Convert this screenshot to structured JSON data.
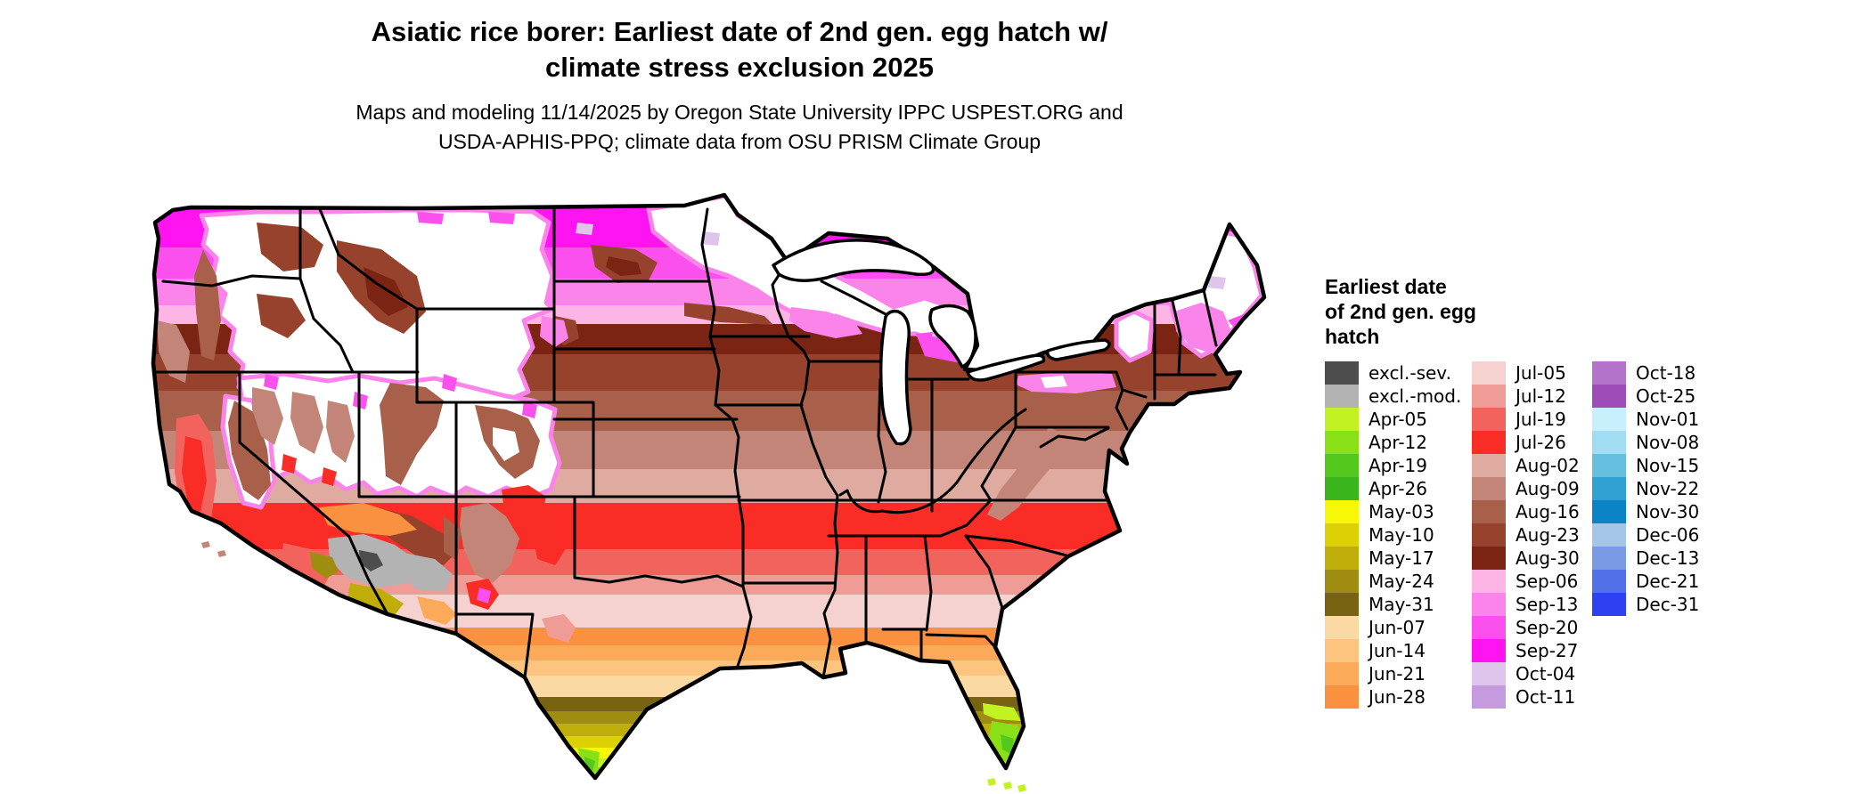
{
  "title": {
    "line1": "Asiatic rice borer: Earliest date of 2nd gen. egg hatch w/",
    "line2": "climate stress exclusion 2025"
  },
  "subtitle": {
    "line1": "Maps and modeling 11/14/2025 by Oregon State University IPPC USPEST.ORG and",
    "line2": "USDA-APHIS-PPQ; climate data from OSU PRISM Climate Group"
  },
  "legend": {
    "title_lines": [
      "Earliest date",
      "of 2nd gen. egg",
      "hatch"
    ],
    "columns": [
      [
        {
          "label": "excl.-sev.",
          "color": "#4d4d4d"
        },
        {
          "label": "excl.-mod.",
          "color": "#b3b3b3"
        },
        {
          "label": "Apr-05",
          "color": "#c3f223"
        },
        {
          "label": "Apr-12",
          "color": "#8ae016"
        },
        {
          "label": "Apr-19",
          "color": "#55c81e"
        },
        {
          "label": "Apr-26",
          "color": "#3ab51c"
        },
        {
          "label": "May-03",
          "color": "#f8f806"
        },
        {
          "label": "May-10",
          "color": "#ddd106"
        },
        {
          "label": "May-17",
          "color": "#bfae0a"
        },
        {
          "label": "May-24",
          "color": "#9f8d12"
        },
        {
          "label": "May-31",
          "color": "#786312"
        },
        {
          "label": "Jun-07",
          "color": "#fbd9a2"
        },
        {
          "label": "Jun-14",
          "color": "#fcc47e"
        },
        {
          "label": "Jun-21",
          "color": "#fbaa5a"
        },
        {
          "label": "Jun-28",
          "color": "#f99140"
        }
      ],
      [
        {
          "label": "Jul-05",
          "color": "#f5d2cf"
        },
        {
          "label": "Jul-12",
          "color": "#f09c96"
        },
        {
          "label": "Jul-19",
          "color": "#f2635d"
        },
        {
          "label": "Jul-26",
          "color": "#f92c26"
        },
        {
          "label": "Aug-02",
          "color": "#dfaaa0"
        },
        {
          "label": "Aug-09",
          "color": "#c28578"
        },
        {
          "label": "Aug-16",
          "color": "#a8604b"
        },
        {
          "label": "Aug-23",
          "color": "#97422d"
        },
        {
          "label": "Aug-30",
          "color": "#7c2414"
        },
        {
          "label": "Sep-06",
          "color": "#fcb5e5"
        },
        {
          "label": "Sep-13",
          "color": "#fb84ea"
        },
        {
          "label": "Sep-20",
          "color": "#fb4fee"
        },
        {
          "label": "Sep-27",
          "color": "#fd14f0"
        },
        {
          "label": "Oct-04",
          "color": "#dfc5ec"
        },
        {
          "label": "Oct-11",
          "color": "#c69ade"
        }
      ],
      [
        {
          "label": "Oct-18",
          "color": "#b473cb"
        },
        {
          "label": "Oct-25",
          "color": "#9d4cb8"
        },
        {
          "label": "Nov-01",
          "color": "#c9effc"
        },
        {
          "label": "Nov-08",
          "color": "#a0dcf2"
        },
        {
          "label": "Nov-15",
          "color": "#67bfe0"
        },
        {
          "label": "Nov-22",
          "color": "#30a1d3"
        },
        {
          "label": "Nov-30",
          "color": "#0a84c6"
        },
        {
          "label": "Dec-06",
          "color": "#a6c5ea"
        },
        {
          "label": "Dec-13",
          "color": "#7b9ae6"
        },
        {
          "label": "Dec-21",
          "color": "#5271e9"
        },
        {
          "label": "Dec-31",
          "color": "#2f3ff2"
        }
      ]
    ]
  },
  "map": {
    "area": "Continental United States",
    "no_data_color": "#ffffff",
    "gradient_order_south_to_north": [
      "Apr-26",
      "Apr-19",
      "Apr-12",
      "Apr-05",
      "May-03",
      "May-10",
      "May-17",
      "May-24",
      "May-31",
      "Jun-07",
      "Jun-14",
      "Jun-21",
      "Jun-28",
      "Jul-05",
      "Jul-12",
      "Jul-19",
      "Jul-26",
      "Aug-02",
      "Aug-09",
      "Aug-16",
      "Aug-23",
      "Aug-30",
      "Sep-06",
      "Sep-13",
      "Sep-20",
      "Sep-27"
    ]
  }
}
